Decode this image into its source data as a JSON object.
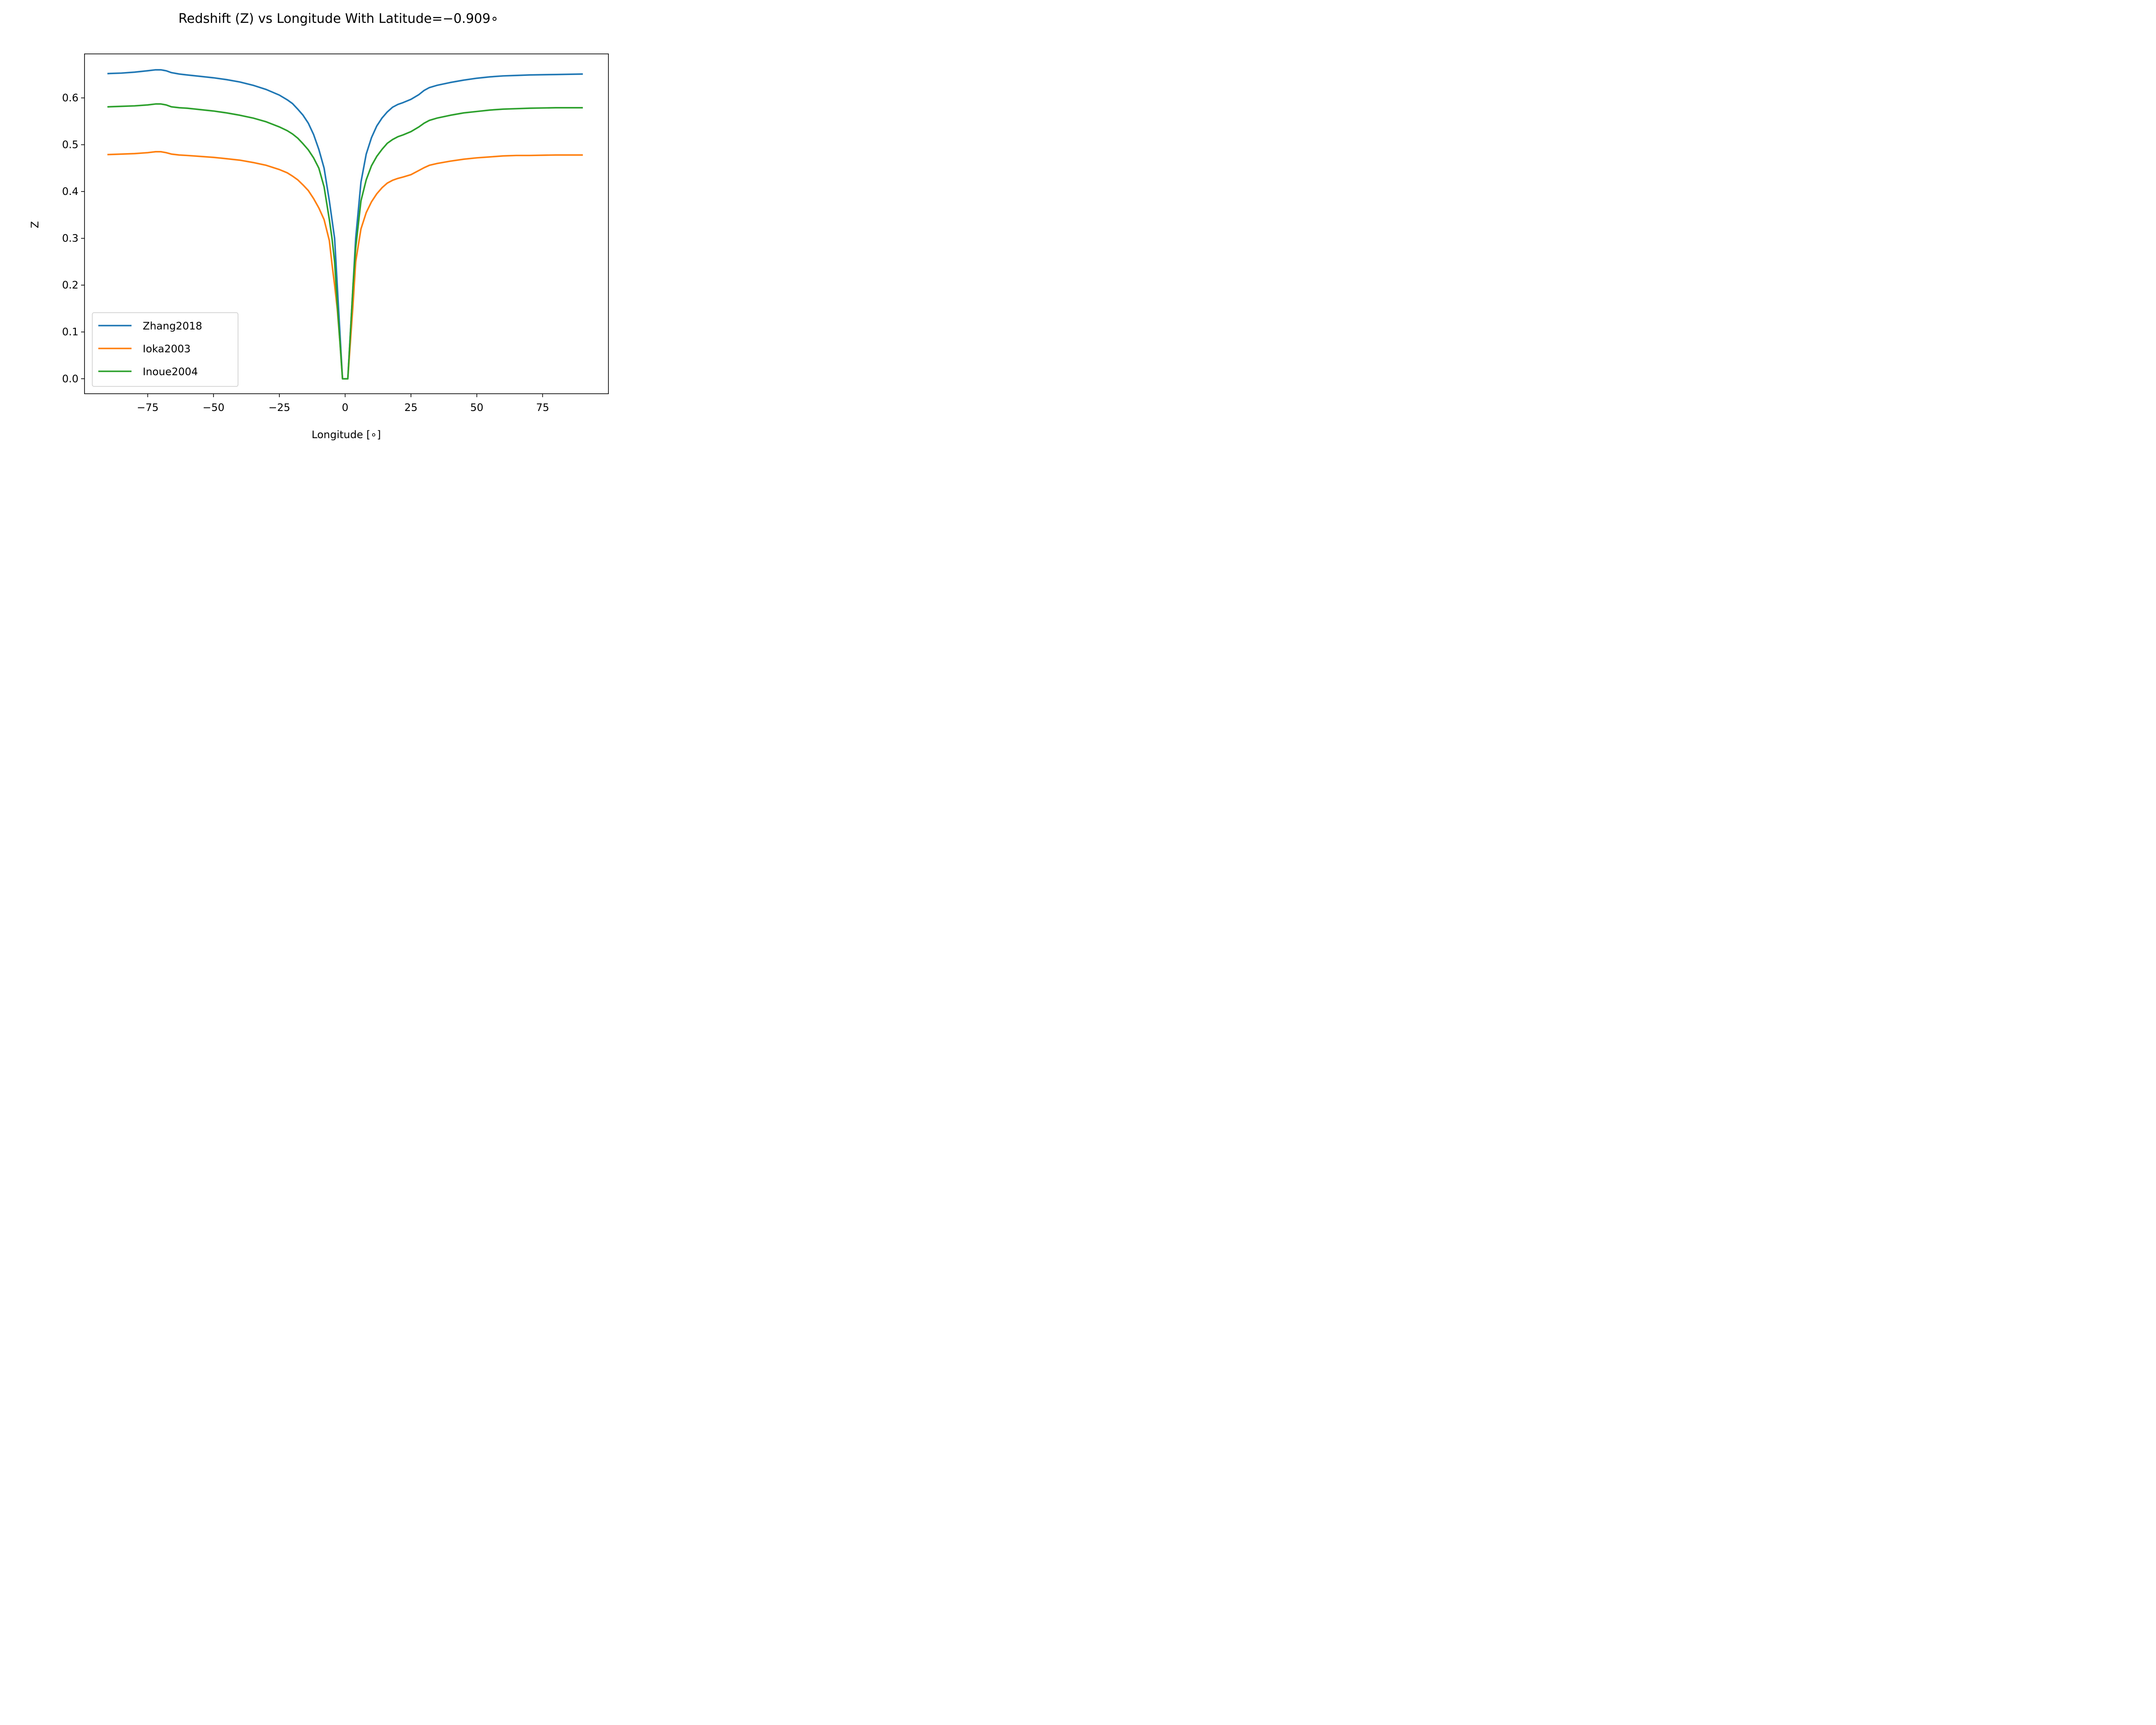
{
  "chart_data": {
    "type": "line",
    "title": "Redshift (Z) vs Longitude With Latitude=−0.909∘",
    "xlabel": "Longitude [∘]",
    "ylabel": "Z",
    "xlim": [
      -99,
      100
    ],
    "ylim": [
      -0.032,
      0.694
    ],
    "xticks": [
      -75,
      -50,
      -25,
      0,
      25,
      50,
      75
    ],
    "xtick_labels": [
      "−75",
      "−50",
      "−25",
      "0",
      "25",
      "50",
      "75"
    ],
    "yticks": [
      0.0,
      0.1,
      0.2,
      0.3,
      0.4,
      0.5,
      0.6
    ],
    "ytick_labels": [
      "0.0",
      "0.1",
      "0.2",
      "0.3",
      "0.4",
      "0.5",
      "0.6"
    ],
    "grid": false,
    "legend_position": "lower left",
    "series": [
      {
        "name": "Zhang2018",
        "color": "#1f77b4",
        "points": [
          [
            -90,
            0.652
          ],
          [
            -85,
            0.653
          ],
          [
            -80,
            0.655
          ],
          [
            -75,
            0.658
          ],
          [
            -72,
            0.66
          ],
          [
            -70,
            0.66
          ],
          [
            -68,
            0.658
          ],
          [
            -66,
            0.654
          ],
          [
            -63,
            0.651
          ],
          [
            -60,
            0.649
          ],
          [
            -55,
            0.646
          ],
          [
            -50,
            0.643
          ],
          [
            -45,
            0.639
          ],
          [
            -40,
            0.634
          ],
          [
            -35,
            0.627
          ],
          [
            -30,
            0.618
          ],
          [
            -25,
            0.606
          ],
          [
            -22,
            0.596
          ],
          [
            -20,
            0.588
          ],
          [
            -18,
            0.576
          ],
          [
            -16,
            0.563
          ],
          [
            -14,
            0.546
          ],
          [
            -12,
            0.522
          ],
          [
            -10,
            0.49
          ],
          [
            -8,
            0.45
          ],
          [
            -6,
            0.38
          ],
          [
            -4,
            0.3
          ],
          [
            -3,
            0.2
          ],
          [
            -2,
            0.1
          ],
          [
            -1,
            0.0
          ],
          [
            1,
            0.0
          ],
          [
            2,
            0.1
          ],
          [
            3,
            0.2
          ],
          [
            4,
            0.3
          ],
          [
            6,
            0.42
          ],
          [
            8,
            0.48
          ],
          [
            10,
            0.515
          ],
          [
            12,
            0.54
          ],
          [
            14,
            0.557
          ],
          [
            16,
            0.57
          ],
          [
            18,
            0.58
          ],
          [
            20,
            0.586
          ],
          [
            22,
            0.59
          ],
          [
            25,
            0.597
          ],
          [
            28,
            0.607
          ],
          [
            30,
            0.616
          ],
          [
            32,
            0.622
          ],
          [
            35,
            0.627
          ],
          [
            40,
            0.633
          ],
          [
            45,
            0.638
          ],
          [
            50,
            0.642
          ],
          [
            55,
            0.645
          ],
          [
            60,
            0.647
          ],
          [
            65,
            0.648
          ],
          [
            70,
            0.649
          ],
          [
            80,
            0.65
          ],
          [
            90,
            0.651
          ]
        ]
      },
      {
        "name": "Ioka2003",
        "color": "#ff7f0e",
        "points": [
          [
            -90,
            0.479
          ],
          [
            -85,
            0.48
          ],
          [
            -80,
            0.481
          ],
          [
            -75,
            0.483
          ],
          [
            -72,
            0.485
          ],
          [
            -70,
            0.485
          ],
          [
            -68,
            0.483
          ],
          [
            -66,
            0.48
          ],
          [
            -63,
            0.478
          ],
          [
            -60,
            0.477
          ],
          [
            -55,
            0.475
          ],
          [
            -50,
            0.473
          ],
          [
            -45,
            0.47
          ],
          [
            -40,
            0.467
          ],
          [
            -35,
            0.462
          ],
          [
            -30,
            0.456
          ],
          [
            -25,
            0.447
          ],
          [
            -22,
            0.44
          ],
          [
            -20,
            0.433
          ],
          [
            -18,
            0.425
          ],
          [
            -16,
            0.414
          ],
          [
            -14,
            0.402
          ],
          [
            -12,
            0.385
          ],
          [
            -10,
            0.365
          ],
          [
            -8,
            0.34
          ],
          [
            -6,
            0.295
          ],
          [
            -5,
            0.245
          ],
          [
            -4,
            0.2
          ],
          [
            -3,
            0.15
          ],
          [
            -2,
            0.08
          ],
          [
            -1,
            0.0
          ],
          [
            1,
            0.0
          ],
          [
            2,
            0.08
          ],
          [
            3,
            0.16
          ],
          [
            4,
            0.25
          ],
          [
            6,
            0.32
          ],
          [
            8,
            0.355
          ],
          [
            10,
            0.378
          ],
          [
            12,
            0.395
          ],
          [
            14,
            0.408
          ],
          [
            16,
            0.418
          ],
          [
            18,
            0.424
          ],
          [
            20,
            0.428
          ],
          [
            22,
            0.431
          ],
          [
            25,
            0.436
          ],
          [
            28,
            0.445
          ],
          [
            30,
            0.451
          ],
          [
            32,
            0.456
          ],
          [
            35,
            0.46
          ],
          [
            40,
            0.465
          ],
          [
            45,
            0.469
          ],
          [
            50,
            0.472
          ],
          [
            55,
            0.474
          ],
          [
            60,
            0.476
          ],
          [
            65,
            0.477
          ],
          [
            70,
            0.477
          ],
          [
            80,
            0.478
          ],
          [
            90,
            0.478
          ]
        ]
      },
      {
        "name": "Inoue2004",
        "color": "#2ca02c",
        "points": [
          [
            -90,
            0.581
          ],
          [
            -85,
            0.582
          ],
          [
            -80,
            0.583
          ],
          [
            -75,
            0.585
          ],
          [
            -72,
            0.587
          ],
          [
            -70,
            0.587
          ],
          [
            -68,
            0.585
          ],
          [
            -66,
            0.581
          ],
          [
            -63,
            0.579
          ],
          [
            -60,
            0.578
          ],
          [
            -55,
            0.575
          ],
          [
            -50,
            0.572
          ],
          [
            -45,
            0.568
          ],
          [
            -40,
            0.563
          ],
          [
            -35,
            0.557
          ],
          [
            -30,
            0.549
          ],
          [
            -25,
            0.538
          ],
          [
            -22,
            0.53
          ],
          [
            -20,
            0.523
          ],
          [
            -18,
            0.514
          ],
          [
            -16,
            0.502
          ],
          [
            -14,
            0.489
          ],
          [
            -12,
            0.472
          ],
          [
            -10,
            0.45
          ],
          [
            -8,
            0.41
          ],
          [
            -6,
            0.34
          ],
          [
            -5,
            0.3
          ],
          [
            -4,
            0.25
          ],
          [
            -3,
            0.16
          ],
          [
            -2,
            0.08
          ],
          [
            -1,
            0.0
          ],
          [
            1,
            0.0
          ],
          [
            2,
            0.1
          ],
          [
            3,
            0.2
          ],
          [
            4,
            0.28
          ],
          [
            6,
            0.38
          ],
          [
            8,
            0.425
          ],
          [
            10,
            0.455
          ],
          [
            12,
            0.475
          ],
          [
            14,
            0.49
          ],
          [
            16,
            0.503
          ],
          [
            18,
            0.511
          ],
          [
            20,
            0.517
          ],
          [
            22,
            0.521
          ],
          [
            25,
            0.528
          ],
          [
            28,
            0.538
          ],
          [
            30,
            0.546
          ],
          [
            32,
            0.552
          ],
          [
            35,
            0.557
          ],
          [
            40,
            0.563
          ],
          [
            45,
            0.568
          ],
          [
            50,
            0.571
          ],
          [
            55,
            0.574
          ],
          [
            60,
            0.576
          ],
          [
            65,
            0.577
          ],
          [
            70,
            0.578
          ],
          [
            80,
            0.579
          ],
          [
            90,
            0.579
          ]
        ]
      }
    ]
  }
}
